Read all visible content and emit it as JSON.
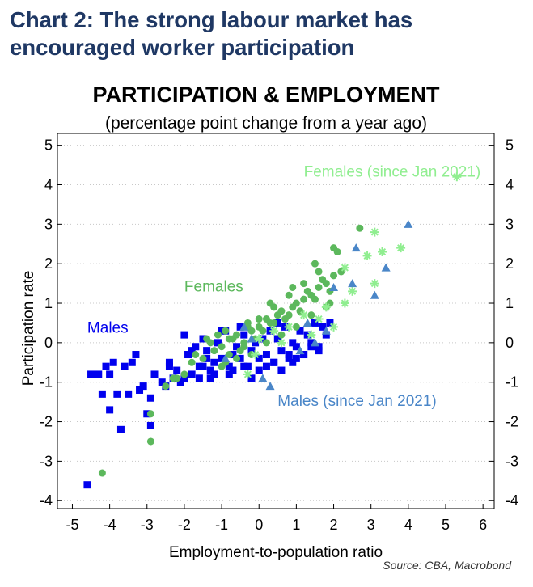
{
  "heading": {
    "line1": "Chart 2: The strong labour market has",
    "line2": "encouraged worker participation"
  },
  "source": "Source: CBA, Macrobond",
  "colors": {
    "heading": "#1f3864",
    "males": "#0000ee",
    "females": "#5cb85c",
    "females_recent": "#90ee90",
    "males_recent": "#4a86c8"
  },
  "chart_data": {
    "type": "scatter",
    "title": "PARTICIPATION & EMPLOYMENT",
    "subtitle": "(percentage point change from a year ago)",
    "xlabel": "Employment-to-population ratio",
    "ylabel": "Participation rate",
    "xlim": [
      -5.4,
      6.3
    ],
    "ylim": [
      -4.2,
      5.3
    ],
    "xticks": [
      -5,
      -4,
      -3,
      -2,
      -1,
      0,
      1,
      2,
      3,
      4,
      5,
      6
    ],
    "yticks": [
      -4,
      -3,
      -2,
      -1,
      0,
      1,
      2,
      3,
      4,
      5
    ],
    "grid": "horizontal dotted",
    "annotations": [
      {
        "text": "Females (since Jan 2021)",
        "x": 1.2,
        "y": 4.2,
        "color": "#90ee90"
      },
      {
        "text": "Females",
        "x": -2.0,
        "y": 1.3,
        "color": "#5cb85c"
      },
      {
        "text": "Males",
        "x": -4.6,
        "y": 0.25,
        "color": "#0000ee"
      },
      {
        "text": "Males (since Jan 2021)",
        "x": 0.5,
        "y": -1.6,
        "color": "#4a86c8"
      }
    ],
    "series": [
      {
        "name": "Males",
        "marker": "square",
        "color": "#0000ee",
        "x": [
          -4.6,
          -3.6,
          -4.0,
          -3.5,
          -3.2,
          -3.0,
          -2.9,
          -2.9,
          -3.8,
          -4.0,
          -4.1,
          -3.7,
          -3.3,
          -2.8,
          -2.6,
          -2.4,
          -2.2,
          -2.0,
          -1.8,
          -1.6,
          -1.5,
          -1.3,
          -1.2,
          -1.0,
          -0.8,
          -0.7,
          -0.5,
          -0.3,
          -0.2,
          0.0,
          0.2,
          0.4,
          0.6,
          0.8,
          1.0,
          1.2,
          1.4,
          1.6,
          1.8,
          -1.9,
          -1.7,
          -1.5,
          -1.4,
          -1.1,
          -0.9,
          -0.6,
          -0.4,
          -0.1,
          0.1,
          0.3,
          0.5,
          0.7,
          0.9,
          1.1,
          1.3,
          1.5,
          1.7,
          -2.3,
          -2.1,
          -2.5,
          -1.6,
          -1.2,
          -0.8,
          -0.4,
          0.0,
          0.4,
          0.8,
          1.2,
          1.6,
          -4.3,
          -4.5,
          -4.2,
          -3.9,
          -3.4,
          -3.1,
          -2.0,
          -1.0,
          -0.5,
          0.5,
          1.9,
          -1.8,
          -1.3,
          -0.7,
          0.2,
          0.6,
          1.0,
          1.4,
          -2.4,
          -1.4,
          -0.2,
          0.9
        ],
        "y": [
          -3.6,
          -0.6,
          -1.7,
          -1.3,
          -1.2,
          -1.8,
          -2.1,
          -1.4,
          -1.3,
          -0.8,
          -0.6,
          -2.2,
          -0.3,
          -0.8,
          -1.0,
          -0.5,
          -0.7,
          -0.9,
          -0.8,
          -0.6,
          -0.6,
          -0.7,
          -0.5,
          -0.4,
          -0.6,
          -0.3,
          -0.4,
          -0.6,
          -0.2,
          -0.4,
          -0.3,
          -0.5,
          -0.2,
          -0.3,
          -0.1,
          -0.3,
          0.0,
          -0.1,
          0.2,
          -0.3,
          -0.1,
          0.1,
          -0.2,
          0.0,
          0.3,
          -0.1,
          0.2,
          0.0,
          0.1,
          0.3,
          0.1,
          0.4,
          0.0,
          0.3,
          0.2,
          0.5,
          0.4,
          -0.9,
          -1.0,
          -1.1,
          -0.9,
          -0.8,
          -0.8,
          -0.6,
          -0.7,
          -0.5,
          -0.4,
          -0.3,
          -0.2,
          -0.8,
          -0.8,
          -1.3,
          -0.5,
          -0.5,
          -1.1,
          0.2,
          0.3,
          0.4,
          0.5,
          0.5,
          -0.2,
          -0.9,
          -0.7,
          -0.6,
          -0.7,
          -0.4,
          -0.1,
          -0.6,
          -0.4,
          -0.9,
          -0.5
        ]
      },
      {
        "name": "Females",
        "marker": "circle",
        "color": "#5cb85c",
        "x": [
          -4.2,
          -2.9,
          -2.9,
          -2.5,
          -2.3,
          -2.0,
          -1.8,
          -1.5,
          -1.2,
          -1.0,
          -0.8,
          -0.6,
          -0.4,
          -0.2,
          0.0,
          0.2,
          0.4,
          0.6,
          0.8,
          1.0,
          1.2,
          1.4,
          1.6,
          1.8,
          2.0,
          2.2,
          2.7,
          -1.3,
          -1.1,
          -0.9,
          -0.7,
          -0.5,
          -0.3,
          -0.1,
          0.1,
          0.3,
          0.5,
          0.7,
          0.9,
          1.1,
          1.3,
          1.5,
          1.7,
          1.9,
          2.1,
          -1.0,
          -0.6,
          -0.2,
          0.2,
          0.6,
          1.0,
          1.4,
          1.8,
          -0.8,
          -0.4,
          0.0,
          0.4,
          0.8,
          1.2,
          1.6,
          2.0,
          -1.7,
          -1.4,
          -0.9,
          -0.3,
          0.3,
          0.9,
          1.5,
          1.9,
          -2.2
        ],
        "y": [
          -3.3,
          -2.5,
          -1.8,
          -1.1,
          -0.9,
          -0.8,
          -0.5,
          -0.4,
          -0.2,
          -0.1,
          -0.3,
          0.2,
          0.0,
          0.3,
          0.4,
          0.6,
          0.5,
          0.8,
          0.7,
          1.0,
          1.1,
          1.2,
          1.4,
          1.5,
          1.7,
          1.8,
          2.9,
          0.0,
          0.2,
          -0.5,
          0.1,
          -0.2,
          0.4,
          0.1,
          0.3,
          0.5,
          0.7,
          0.6,
          0.9,
          0.8,
          1.3,
          1.1,
          1.6,
          1.3,
          2.3,
          -0.6,
          -0.4,
          -0.3,
          0.0,
          0.2,
          0.4,
          0.7,
          0.9,
          0.1,
          -0.1,
          0.6,
          0.9,
          1.2,
          1.5,
          1.8,
          2.4,
          -0.3,
          0.1,
          0.3,
          0.5,
          1.0,
          1.4,
          2.0,
          1.0,
          -0.9
        ]
      },
      {
        "name": "Females (since Jan 2021)",
        "marker": "asterisk",
        "color": "#90ee90",
        "x": [
          5.3,
          3.1,
          3.3,
          3.8,
          2.9,
          3.1,
          2.3,
          2.5,
          1.8,
          1.6,
          1.2,
          0.8,
          0.4,
          0.0,
          -0.3,
          2.0,
          1.4,
          0.6,
          -0.1,
          2.3
        ],
        "y": [
          4.2,
          2.8,
          2.3,
          2.4,
          2.2,
          1.5,
          1.9,
          1.3,
          0.9,
          0.6,
          0.7,
          0.4,
          0.3,
          0.1,
          -0.8,
          0.4,
          0.2,
          0.0,
          -0.3,
          1.0
        ]
      },
      {
        "name": "Males (since Jan 2021)",
        "marker": "triangle",
        "color": "#4a86c8",
        "x": [
          4.0,
          3.4,
          3.1,
          2.6,
          2.5,
          2.0,
          1.8,
          1.5,
          1.1,
          0.3,
          0.1,
          -0.4,
          -0.9,
          -0.2,
          1.3
        ],
        "y": [
          3.0,
          1.9,
          1.2,
          2.4,
          1.5,
          1.4,
          0.3,
          0.0,
          -0.2,
          -1.1,
          -0.9,
          0.4,
          -0.4,
          0.1,
          0.5
        ]
      }
    ]
  }
}
